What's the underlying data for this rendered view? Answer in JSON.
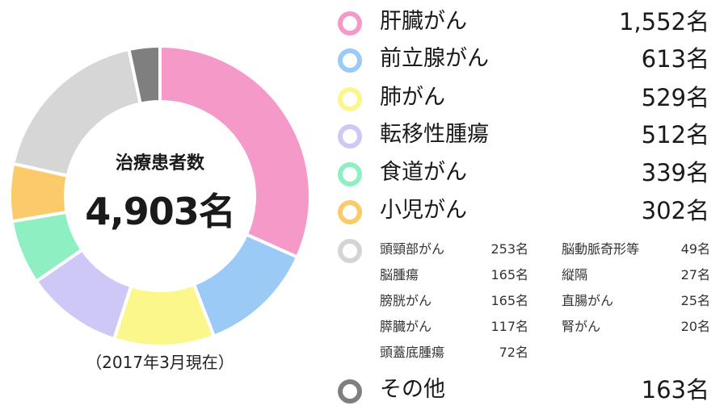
{
  "chart_data": {
    "type": "pie",
    "subtype": "donut",
    "center_title": "治療患者数",
    "center_total": "4,903名",
    "note": "（2017年3月現在）",
    "total": 4903,
    "slices": [
      {
        "name": "肝臓がん",
        "value": 1552,
        "count_label": "1,552名",
        "color": "#f59ac8"
      },
      {
        "name": "前立腺がん",
        "value": 613,
        "count_label": "613名",
        "color": "#9ccaf6"
      },
      {
        "name": "肺がん",
        "value": 529,
        "count_label": "529名",
        "color": "#fbf78a"
      },
      {
        "name": "転移性腫瘍",
        "value": 512,
        "count_label": "512名",
        "color": "#cdc8f5"
      },
      {
        "name": "食道がん",
        "value": 339,
        "count_label": "339名",
        "color": "#8ef0c2"
      },
      {
        "name": "小児がん",
        "value": 302,
        "count_label": "302名",
        "color": "#fbca6a"
      },
      {
        "name": "その他（頭頸部がん等）",
        "value": 893,
        "count_label": "",
        "color": "#d6d6d6"
      },
      {
        "name": "その他",
        "value": 163,
        "count_label": "163名",
        "color": "#7f7f7f"
      }
    ],
    "legend_main": [
      {
        "name": "肝臓がん",
        "count": "1,552名",
        "color": "#f59ac8"
      },
      {
        "name": "前立腺がん",
        "count": "613名",
        "color": "#9ccaf6"
      },
      {
        "name": "肺がん",
        "count": "529名",
        "color": "#fbf78a"
      },
      {
        "name": "転移性腫瘍",
        "count": "512名",
        "color": "#cdc8f5"
      },
      {
        "name": "食道がん",
        "count": "339名",
        "color": "#8ef0c2"
      },
      {
        "name": "小児がん",
        "count": "302名",
        "color": "#fbca6a"
      }
    ],
    "legend_small_left": [
      {
        "name": "頭頸部がん",
        "count": "253名"
      },
      {
        "name": "脳腫瘍",
        "count": "165名"
      },
      {
        "name": "膀胱がん",
        "count": "165名"
      },
      {
        "name": "膵臓がん",
        "count": "117名"
      },
      {
        "name": "頭蓋底腫瘍",
        "count": "72名"
      }
    ],
    "legend_small_right": [
      {
        "name": "脳動脈奇形等",
        "count": "49名"
      },
      {
        "name": "縦隔",
        "count": "27名"
      },
      {
        "name": "直腸がん",
        "count": "25名"
      },
      {
        "name": "腎がん",
        "count": "20名"
      }
    ],
    "legend_small_color": "#d4d4d4",
    "legend_other": {
      "name": "その他",
      "count": "163名",
      "color": "#7f7f7f"
    }
  }
}
